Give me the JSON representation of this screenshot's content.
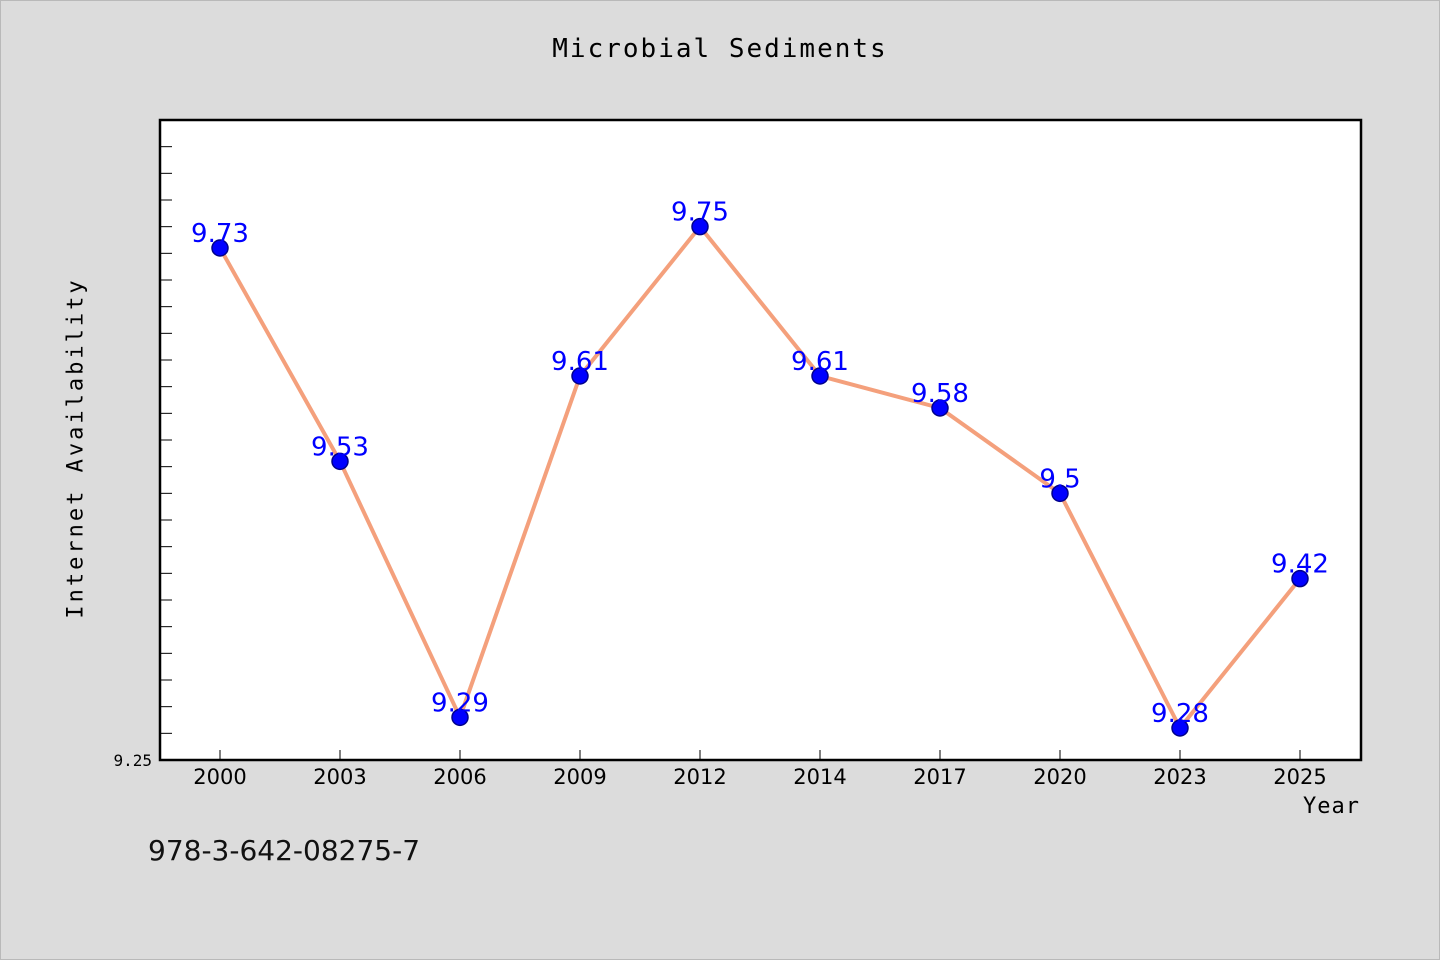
{
  "chart_data": {
    "type": "line",
    "title": "Microbial Sediments",
    "xlabel": "Year",
    "ylabel": "Internet Availability",
    "categories": [
      "2000",
      "2003",
      "2006",
      "2009",
      "2012",
      "2014",
      "2017",
      "2020",
      "2023",
      "2025"
    ],
    "series": [
      {
        "values": [
          9.73,
          9.53,
          9.29,
          9.61,
          9.75,
          9.61,
          9.58,
          9.5,
          9.28,
          9.42
        ]
      }
    ],
    "data_labels": [
      "9.73",
      "9.53",
      "9.29",
      "9.61",
      "9.75",
      "9.61",
      "9.58",
      "9.5",
      "9.28",
      "9.42"
    ],
    "y_tick_label": "9.25",
    "ylim": [
      9.25,
      9.85
    ],
    "grid": false,
    "line_color": "#f4a07c",
    "marker_color": "#0000ff",
    "label_color": "#0000ff"
  },
  "footer": {
    "isbn": "978-3-642-08275-7"
  }
}
